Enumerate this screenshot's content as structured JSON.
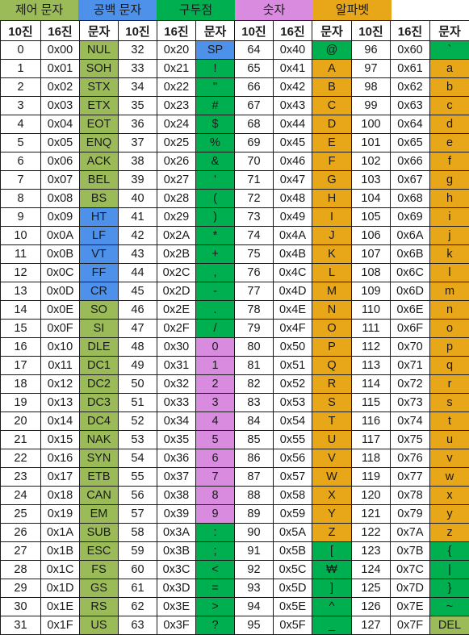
{
  "colors": {
    "control": "#9bbb59",
    "whitespace": "#4d91ea",
    "punctuation": "#00b050",
    "digit": "#d98bdf",
    "alphabet": "#e8a619"
  },
  "legend": [
    {
      "label": "제어 문자",
      "category": "control"
    },
    {
      "label": "공백 문자",
      "category": "whitespace"
    },
    {
      "label": "구두점",
      "category": "punctuation"
    },
    {
      "label": "숫자",
      "category": "digit"
    },
    {
      "label": "알파벳",
      "category": "alphabet"
    }
  ],
  "headers": [
    "10진",
    "16진",
    "문자",
    "10진",
    "16진",
    "문자",
    "10진",
    "16진",
    "문자",
    "10진",
    "16진",
    "문자"
  ],
  "rows": [
    [
      [
        "0",
        "0x00",
        "NUL",
        "control"
      ],
      [
        "32",
        "0x20",
        "SP",
        "whitespace"
      ],
      [
        "64",
        "0x40",
        "@",
        "punctuation"
      ],
      [
        "96",
        "0x60",
        "`",
        "punctuation"
      ]
    ],
    [
      [
        "1",
        "0x01",
        "SOH",
        "control"
      ],
      [
        "33",
        "0x21",
        "!",
        "punctuation"
      ],
      [
        "65",
        "0x41",
        "A",
        "alphabet"
      ],
      [
        "97",
        "0x61",
        "a",
        "alphabet"
      ]
    ],
    [
      [
        "2",
        "0x02",
        "STX",
        "control"
      ],
      [
        "34",
        "0x22",
        "\"",
        "punctuation"
      ],
      [
        "66",
        "0x42",
        "B",
        "alphabet"
      ],
      [
        "98",
        "0x62",
        "b",
        "alphabet"
      ]
    ],
    [
      [
        "3",
        "0x03",
        "ETX",
        "control"
      ],
      [
        "35",
        "0x23",
        "#",
        "punctuation"
      ],
      [
        "67",
        "0x43",
        "C",
        "alphabet"
      ],
      [
        "99",
        "0x63",
        "c",
        "alphabet"
      ]
    ],
    [
      [
        "4",
        "0x04",
        "EOT",
        "control"
      ],
      [
        "36",
        "0x24",
        "$",
        "punctuation"
      ],
      [
        "68",
        "0x44",
        "D",
        "alphabet"
      ],
      [
        "100",
        "0x64",
        "d",
        "alphabet"
      ]
    ],
    [
      [
        "5",
        "0x05",
        "ENQ",
        "control"
      ],
      [
        "37",
        "0x25",
        "%",
        "punctuation"
      ],
      [
        "69",
        "0x45",
        "E",
        "alphabet"
      ],
      [
        "101",
        "0x65",
        "e",
        "alphabet"
      ]
    ],
    [
      [
        "6",
        "0x06",
        "ACK",
        "control"
      ],
      [
        "38",
        "0x26",
        "&",
        "punctuation"
      ],
      [
        "70",
        "0x46",
        "F",
        "alphabet"
      ],
      [
        "102",
        "0x66",
        "f",
        "alphabet"
      ]
    ],
    [
      [
        "7",
        "0x07",
        "BEL",
        "control"
      ],
      [
        "39",
        "0x27",
        "'",
        "punctuation"
      ],
      [
        "71",
        "0x47",
        "G",
        "alphabet"
      ],
      [
        "103",
        "0x67",
        "g",
        "alphabet"
      ]
    ],
    [
      [
        "8",
        "0x08",
        "BS",
        "control"
      ],
      [
        "40",
        "0x28",
        "(",
        "punctuation"
      ],
      [
        "72",
        "0x48",
        "H",
        "alphabet"
      ],
      [
        "104",
        "0x68",
        "h",
        "alphabet"
      ]
    ],
    [
      [
        "9",
        "0x09",
        "HT",
        "whitespace"
      ],
      [
        "41",
        "0x29",
        ")",
        "punctuation"
      ],
      [
        "73",
        "0x49",
        "I",
        "alphabet"
      ],
      [
        "105",
        "0x69",
        "i",
        "alphabet"
      ]
    ],
    [
      [
        "10",
        "0x0A",
        "LF",
        "whitespace"
      ],
      [
        "42",
        "0x2A",
        "*",
        "punctuation"
      ],
      [
        "74",
        "0x4A",
        "J",
        "alphabet"
      ],
      [
        "106",
        "0x6A",
        "j",
        "alphabet"
      ]
    ],
    [
      [
        "11",
        "0x0B",
        "VT",
        "whitespace"
      ],
      [
        "43",
        "0x2B",
        "+",
        "punctuation"
      ],
      [
        "75",
        "0x4B",
        "K",
        "alphabet"
      ],
      [
        "107",
        "0x6B",
        "k",
        "alphabet"
      ]
    ],
    [
      [
        "12",
        "0x0C",
        "FF",
        "whitespace"
      ],
      [
        "44",
        "0x2C",
        ",",
        "punctuation"
      ],
      [
        "76",
        "0x4C",
        "L",
        "alphabet"
      ],
      [
        "108",
        "0x6C",
        "l",
        "alphabet"
      ]
    ],
    [
      [
        "13",
        "0x0D",
        "CR",
        "whitespace"
      ],
      [
        "45",
        "0x2D",
        "-",
        "punctuation"
      ],
      [
        "77",
        "0x4D",
        "M",
        "alphabet"
      ],
      [
        "109",
        "0x6D",
        "m",
        "alphabet"
      ]
    ],
    [
      [
        "14",
        "0x0E",
        "SO",
        "control"
      ],
      [
        "46",
        "0x2E",
        ".",
        "punctuation"
      ],
      [
        "78",
        "0x4E",
        "N",
        "alphabet"
      ],
      [
        "110",
        "0x6E",
        "n",
        "alphabet"
      ]
    ],
    [
      [
        "15",
        "0x0F",
        "SI",
        "control"
      ],
      [
        "47",
        "0x2F",
        "/",
        "punctuation"
      ],
      [
        "79",
        "0x4F",
        "O",
        "alphabet"
      ],
      [
        "111",
        "0x6F",
        "o",
        "alphabet"
      ]
    ],
    [
      [
        "16",
        "0x10",
        "DLE",
        "control"
      ],
      [
        "48",
        "0x30",
        "0",
        "digit"
      ],
      [
        "80",
        "0x50",
        "P",
        "alphabet"
      ],
      [
        "112",
        "0x70",
        "p",
        "alphabet"
      ]
    ],
    [
      [
        "17",
        "0x11",
        "DC1",
        "control"
      ],
      [
        "49",
        "0x31",
        "1",
        "digit"
      ],
      [
        "81",
        "0x51",
        "Q",
        "alphabet"
      ],
      [
        "113",
        "0x71",
        "q",
        "alphabet"
      ]
    ],
    [
      [
        "18",
        "0x12",
        "DC2",
        "control"
      ],
      [
        "50",
        "0x32",
        "2",
        "digit"
      ],
      [
        "82",
        "0x52",
        "R",
        "alphabet"
      ],
      [
        "114",
        "0x72",
        "r",
        "alphabet"
      ]
    ],
    [
      [
        "19",
        "0x13",
        "DC3",
        "control"
      ],
      [
        "51",
        "0x33",
        "3",
        "digit"
      ],
      [
        "83",
        "0x53",
        "S",
        "alphabet"
      ],
      [
        "115",
        "0x73",
        "s",
        "alphabet"
      ]
    ],
    [
      [
        "20",
        "0x14",
        "DC4",
        "control"
      ],
      [
        "52",
        "0x34",
        "4",
        "digit"
      ],
      [
        "84",
        "0x54",
        "T",
        "alphabet"
      ],
      [
        "116",
        "0x74",
        "t",
        "alphabet"
      ]
    ],
    [
      [
        "21",
        "0x15",
        "NAK",
        "control"
      ],
      [
        "53",
        "0x35",
        "5",
        "digit"
      ],
      [
        "85",
        "0x55",
        "U",
        "alphabet"
      ],
      [
        "117",
        "0x75",
        "u",
        "alphabet"
      ]
    ],
    [
      [
        "22",
        "0x16",
        "SYN",
        "control"
      ],
      [
        "54",
        "0x36",
        "6",
        "digit"
      ],
      [
        "86",
        "0x56",
        "V",
        "alphabet"
      ],
      [
        "118",
        "0x76",
        "v",
        "alphabet"
      ]
    ],
    [
      [
        "23",
        "0x17",
        "ETB",
        "control"
      ],
      [
        "55",
        "0x37",
        "7",
        "digit"
      ],
      [
        "87",
        "0x57",
        "W",
        "alphabet"
      ],
      [
        "119",
        "0x77",
        "w",
        "alphabet"
      ]
    ],
    [
      [
        "24",
        "0x18",
        "CAN",
        "control"
      ],
      [
        "56",
        "0x38",
        "8",
        "digit"
      ],
      [
        "88",
        "0x58",
        "X",
        "alphabet"
      ],
      [
        "120",
        "0x78",
        "x",
        "alphabet"
      ]
    ],
    [
      [
        "25",
        "0x19",
        "EM",
        "control"
      ],
      [
        "57",
        "0x39",
        "9",
        "digit"
      ],
      [
        "89",
        "0x59",
        "Y",
        "alphabet"
      ],
      [
        "121",
        "0x79",
        "y",
        "alphabet"
      ]
    ],
    [
      [
        "26",
        "0x1A",
        "SUB",
        "control"
      ],
      [
        "58",
        "0x3A",
        ":",
        "punctuation"
      ],
      [
        "90",
        "0x5A",
        "Z",
        "alphabet"
      ],
      [
        "122",
        "0x7A",
        "z",
        "alphabet"
      ]
    ],
    [
      [
        "27",
        "0x1B",
        "ESC",
        "control"
      ],
      [
        "59",
        "0x3B",
        ";",
        "punctuation"
      ],
      [
        "91",
        "0x5B",
        "[",
        "punctuation"
      ],
      [
        "123",
        "0x7B",
        "{",
        "punctuation"
      ]
    ],
    [
      [
        "28",
        "0x1C",
        "FS",
        "control"
      ],
      [
        "60",
        "0x3C",
        "<",
        "punctuation"
      ],
      [
        "92",
        "0x5C",
        "₩",
        "punctuation"
      ],
      [
        "124",
        "0x7C",
        "|",
        "punctuation"
      ]
    ],
    [
      [
        "29",
        "0x1D",
        "GS",
        "control"
      ],
      [
        "61",
        "0x3D",
        "=",
        "punctuation"
      ],
      [
        "93",
        "0x5D",
        "]",
        "punctuation"
      ],
      [
        "125",
        "0x7D",
        "}",
        "punctuation"
      ]
    ],
    [
      [
        "30",
        "0x1E",
        "RS",
        "control"
      ],
      [
        "62",
        "0x3E",
        ">",
        "punctuation"
      ],
      [
        "94",
        "0x5E",
        "^",
        "punctuation"
      ],
      [
        "126",
        "0x7E",
        "~",
        "punctuation"
      ]
    ],
    [
      [
        "31",
        "0x1F",
        "US",
        "control"
      ],
      [
        "63",
        "0x3F",
        "?",
        "punctuation"
      ],
      [
        "95",
        "0x5F",
        "_",
        "punctuation"
      ],
      [
        "127",
        "0x7F",
        "DEL",
        "control"
      ]
    ]
  ]
}
